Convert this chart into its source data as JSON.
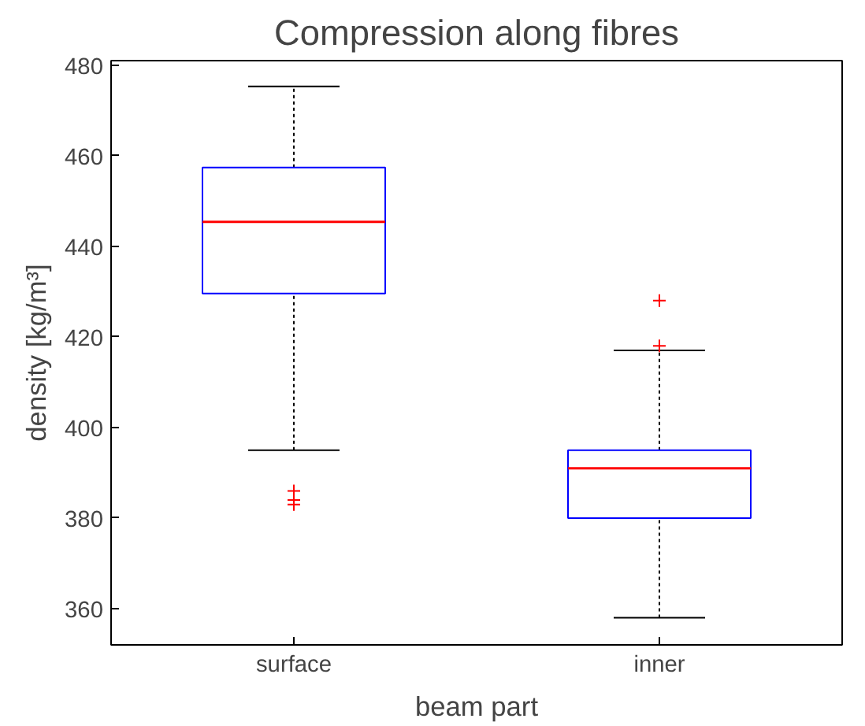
{
  "chart_data": {
    "type": "box",
    "title": "Compression along fibres",
    "xlabel": "beam part",
    "ylabel": "density [kg/m³]",
    "categories": [
      "surface",
      "inner"
    ],
    "boxes": [
      {
        "low": 395,
        "q1": 429.6,
        "median": 445.4,
        "q3": 457.4,
        "high": 475.3,
        "outliers": [
          386,
          384,
          383
        ]
      },
      {
        "low": 358,
        "q1": 380,
        "median": 391,
        "q3": 395,
        "high": 417,
        "outliers": [
          428,
          418
        ]
      }
    ],
    "color": "#0000ff",
    "ylim": [
      352,
      481
    ],
    "yticks": [
      360,
      380,
      400,
      420,
      440,
      460,
      480
    ],
    "marker": "cross"
  }
}
